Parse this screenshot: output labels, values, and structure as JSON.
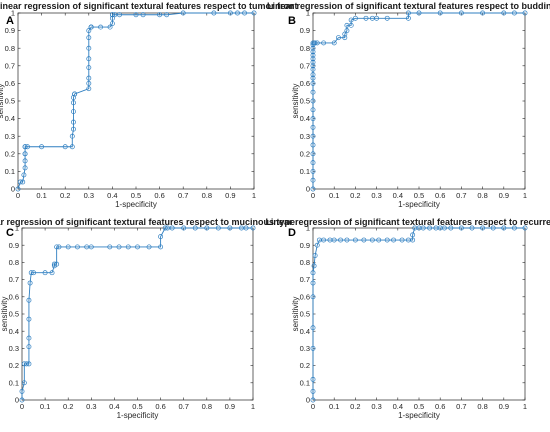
{
  "chart_data": [
    {
      "type": "line",
      "panel_label": "A",
      "title": "Linear regression of significant textural features respect to tumor front",
      "xlabel": "1-specificity",
      "ylabel": "sensitivity",
      "xlim": [
        0,
        1
      ],
      "ylim": [
        0,
        1
      ],
      "xticks": [
        "0",
        "0.1",
        "0.2",
        "0.3",
        "0.4",
        "0.5",
        "0.6",
        "0.7",
        "0.8",
        "0.9",
        "1"
      ],
      "yticks": [
        "0",
        "0.1",
        "0.2",
        "0.3",
        "0.4",
        "0.5",
        "0.6",
        "0.7",
        "0.8",
        "0.9",
        "1"
      ],
      "grid": false,
      "series": [
        {
          "x": [
            0,
            0.01,
            0.02,
            0.025,
            0.03,
            0.03,
            0.03,
            0.03,
            0.03,
            0.03,
            0.04,
            0.1,
            0.2,
            0.23,
            0.23,
            0.235,
            0.235,
            0.235,
            0.235,
            0.235,
            0.24,
            0.24,
            0.3,
            0.3,
            0.3,
            0.3,
            0.3,
            0.3,
            0.3,
            0.3,
            0.31,
            0.31,
            0.31,
            0.35,
            0.39,
            0.4,
            0.4,
            0.4,
            0.4,
            0.41,
            0.43,
            0.5,
            0.53,
            0.6,
            0.63,
            0.7,
            0.83,
            0.9,
            0.93,
            0.96,
            1
          ],
          "y": [
            0,
            0.04,
            0.04,
            0.08,
            0.12,
            0.16,
            0.2,
            0.24,
            0.2,
            0.24,
            0.24,
            0.24,
            0.24,
            0.24,
            0.3,
            0.34,
            0.38,
            0.44,
            0.49,
            0.52,
            0.54,
            0.54,
            0.57,
            0.6,
            0.63,
            0.69,
            0.74,
            0.8,
            0.86,
            0.9,
            0.92,
            0.92,
            0.92,
            0.92,
            0.92,
            0.94,
            0.97,
            0.99,
            0.99,
            0.99,
            0.99,
            0.99,
            0.99,
            0.99,
            0.99,
            1,
            1,
            1,
            1,
            1,
            1
          ]
        }
      ]
    },
    {
      "type": "line",
      "panel_label": "B",
      "title": "Linear regression of significant textural features respect to budding",
      "xlabel": "1-specificity",
      "ylabel": "sensitivity",
      "xlim": [
        0,
        1
      ],
      "ylim": [
        0,
        1
      ],
      "xticks": [
        "0",
        "0.1",
        "0.2",
        "0.3",
        "0.4",
        "0.5",
        "0.6",
        "0.7",
        "0.8",
        "0.9",
        "1"
      ],
      "yticks": [
        "0",
        "0.1",
        "0.2",
        "0.3",
        "0.4",
        "0.5",
        "0.6",
        "0.7",
        "0.8",
        "0.9",
        "1"
      ],
      "grid": false,
      "series": [
        {
          "x": [
            0,
            0,
            0,
            0,
            0,
            0,
            0,
            0,
            0,
            0,
            0,
            0,
            0,
            0,
            0,
            0,
            0,
            0,
            0,
            0,
            0,
            0,
            0,
            0,
            0.005,
            0.01,
            0.02,
            0.05,
            0.1,
            0.12,
            0.15,
            0.15,
            0.16,
            0.16,
            0.18,
            0.18,
            0.2,
            0.25,
            0.28,
            0.3,
            0.35,
            0.45,
            0.45,
            0.5,
            0.6,
            0.7,
            0.8,
            0.9,
            0.95,
            1
          ],
          "y": [
            0,
            0.05,
            0.1,
            0.15,
            0.2,
            0.25,
            0.3,
            0.35,
            0.4,
            0.45,
            0.5,
            0.55,
            0.6,
            0.63,
            0.65,
            0.68,
            0.7,
            0.72,
            0.74,
            0.76,
            0.78,
            0.8,
            0.82,
            0.83,
            0.83,
            0.83,
            0.83,
            0.83,
            0.83,
            0.86,
            0.86,
            0.88,
            0.9,
            0.93,
            0.93,
            0.96,
            0.97,
            0.97,
            0.97,
            0.97,
            0.97,
            0.97,
            1,
            1,
            1,
            1,
            1,
            1,
            1,
            1
          ]
        }
      ]
    },
    {
      "type": "line",
      "panel_label": "C",
      "title": "Linear regression of significant textural features respect to mucinous type",
      "xlabel": "1-specificity",
      "ylabel": "sensitivity",
      "xlim": [
        0,
        1
      ],
      "ylim": [
        0,
        1
      ],
      "xticks": [
        "0",
        "0.1",
        "0.2",
        "0.3",
        "0.4",
        "0.5",
        "0.6",
        "0.7",
        "0.8",
        "0.9",
        "1"
      ],
      "yticks": [
        "0",
        "0.1",
        "0.2",
        "0.3",
        "0.4",
        "0.5",
        "0.6",
        "0.7",
        "0.8",
        "0.9",
        "1"
      ],
      "grid": false,
      "series": [
        {
          "x": [
            0,
            0,
            0.01,
            0.01,
            0.02,
            0.03,
            0.03,
            0.03,
            0.03,
            0.03,
            0.035,
            0.04,
            0.05,
            0.1,
            0.13,
            0.14,
            0.14,
            0.15,
            0.15,
            0.16,
            0.2,
            0.24,
            0.28,
            0.3,
            0.38,
            0.42,
            0.46,
            0.5,
            0.55,
            0.6,
            0.6,
            0.62,
            0.63,
            0.65,
            0.7,
            0.75,
            0.8,
            0.85,
            0.9,
            0.95,
            0.97,
            1
          ],
          "y": [
            0,
            0.05,
            0.1,
            0.21,
            0.21,
            0.21,
            0.31,
            0.36,
            0.47,
            0.58,
            0.68,
            0.74,
            0.74,
            0.74,
            0.74,
            0.78,
            0.79,
            0.79,
            0.89,
            0.89,
            0.89,
            0.89,
            0.89,
            0.89,
            0.89,
            0.89,
            0.89,
            0.89,
            0.89,
            0.89,
            0.95,
            1,
            1,
            1,
            1,
            1,
            1,
            1,
            1,
            1,
            1,
            1
          ]
        }
      ]
    },
    {
      "type": "line",
      "panel_label": "D",
      "title": "Linear regression of significant textural features respect to recurrence",
      "xlabel": "1-specificity",
      "ylabel": "sensitivity",
      "xlim": [
        0,
        1
      ],
      "ylim": [
        0,
        1
      ],
      "xticks": [
        "0",
        "0.1",
        "0.2",
        "0.3",
        "0.4",
        "0.5",
        "0.6",
        "0.7",
        "0.8",
        "0.9",
        "1"
      ],
      "yticks": [
        "0",
        "0.1",
        "0.2",
        "0.3",
        "0.4",
        "0.5",
        "0.6",
        "0.7",
        "0.8",
        "0.9",
        "1"
      ],
      "grid": false,
      "series": [
        {
          "x": [
            0,
            0,
            0,
            0,
            0,
            0,
            0,
            0,
            0.005,
            0.01,
            0.02,
            0.03,
            0.05,
            0.08,
            0.1,
            0.13,
            0.16,
            0.2,
            0.24,
            0.28,
            0.31,
            0.35,
            0.38,
            0.42,
            0.45,
            0.47,
            0.47,
            0.48,
            0.5,
            0.52,
            0.55,
            0.58,
            0.6,
            0.62,
            0.65,
            0.7,
            0.75,
            0.8,
            0.85,
            0.9,
            0.95,
            1
          ],
          "y": [
            0,
            0.05,
            0.12,
            0.3,
            0.42,
            0.6,
            0.68,
            0.74,
            0.78,
            0.84,
            0.9,
            0.93,
            0.93,
            0.93,
            0.93,
            0.93,
            0.93,
            0.93,
            0.93,
            0.93,
            0.93,
            0.93,
            0.93,
            0.93,
            0.93,
            0.93,
            0.96,
            1,
            1,
            1,
            1,
            1,
            1,
            1,
            1,
            1,
            1,
            1,
            1,
            1,
            1,
            1
          ]
        }
      ]
    }
  ]
}
